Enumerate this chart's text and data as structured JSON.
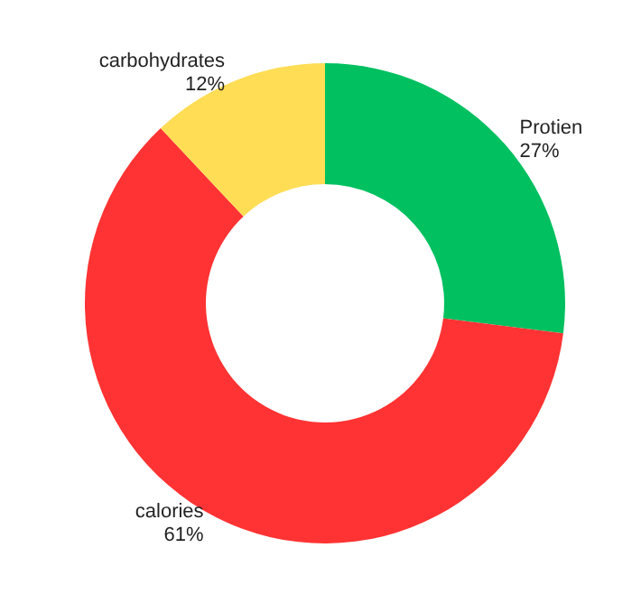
{
  "chart_data": {
    "type": "donut",
    "categories": [
      "Protien",
      "calories",
      "carbohydrates"
    ],
    "values": [
      27,
      61,
      12
    ],
    "value_labels": [
      "27%",
      "61%",
      "12%"
    ],
    "colors": [
      "#00c060",
      "#ff3333",
      "#ffdd55"
    ],
    "legend": false
  }
}
